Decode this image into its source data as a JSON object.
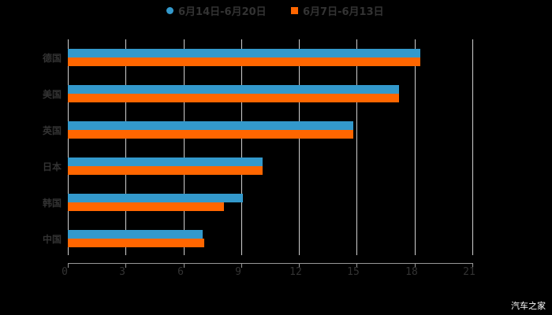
{
  "legend": [
    {
      "label": "6月14日-6月20日",
      "color": "#3399cc",
      "shape": "circle"
    },
    {
      "label": "6月7日-6月13日",
      "color": "#ff6600",
      "shape": "square"
    }
  ],
  "axis": {
    "ticks": [
      "0",
      "3",
      "6",
      "9",
      "12",
      "15",
      "18",
      "21"
    ]
  },
  "categories": [
    "德国",
    "美国",
    "英国",
    "日本",
    "韩国",
    "中国"
  ],
  "watermark": "汽车之家",
  "chart_data": {
    "type": "bar",
    "orientation": "horizontal",
    "title": "",
    "categories": [
      "德国",
      "美国",
      "英国",
      "日本",
      "韩国",
      "中国"
    ],
    "series": [
      {
        "name": "6月14日-6月20日",
        "color": "#3399cc",
        "values": [
          18.3,
          17.2,
          14.8,
          10.1,
          9.1,
          7.0
        ]
      },
      {
        "name": "6月7日-6月13日",
        "color": "#ff6600",
        "values": [
          18.3,
          17.2,
          14.8,
          10.1,
          8.1,
          7.1
        ]
      }
    ],
    "xlabel": "",
    "ylabel": "",
    "xlim": [
      0,
      21
    ],
    "xticks": [
      0,
      3,
      6,
      9,
      12,
      15,
      18,
      21
    ],
    "grid": true,
    "legend_position": "top"
  }
}
